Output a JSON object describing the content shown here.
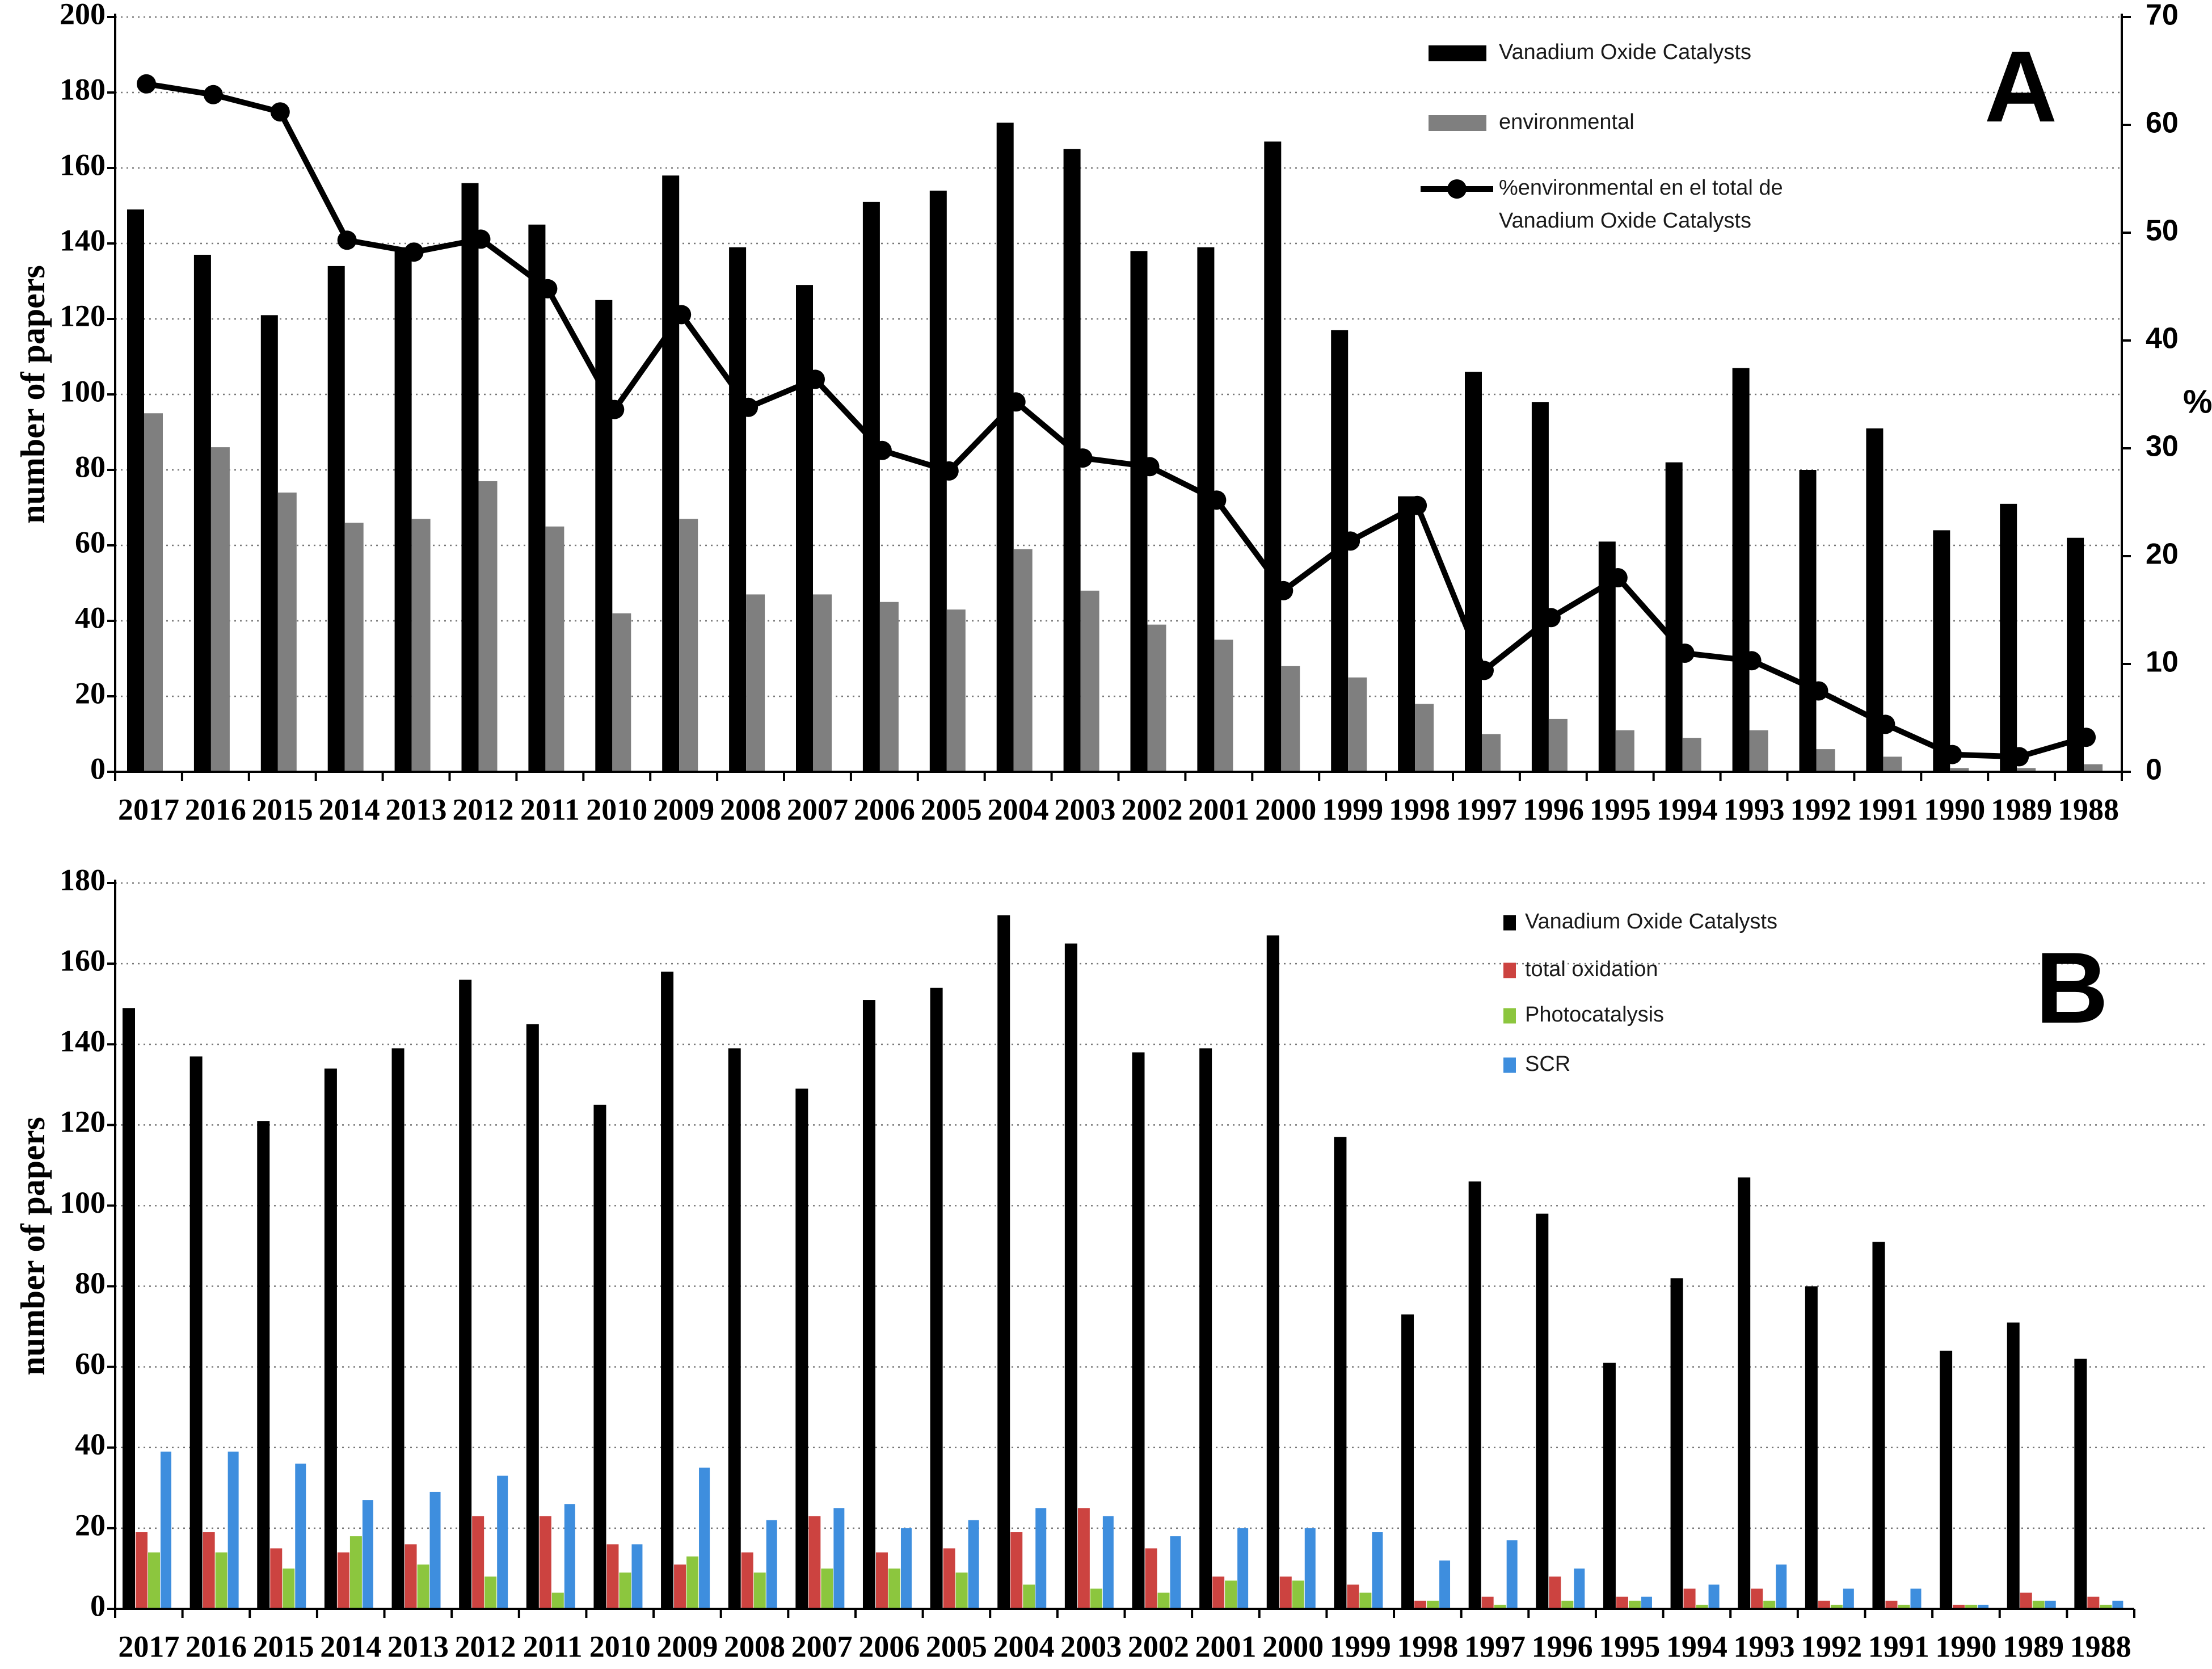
{
  "figure": {
    "background": "#ffffff",
    "panel_letters": [
      "A",
      "B"
    ]
  },
  "chart_data": [
    {
      "id": "A",
      "type": "bar",
      "panel_letter": "A",
      "categories": [
        "2017",
        "2016",
        "2015",
        "2014",
        "2013",
        "2012",
        "2011",
        "2010",
        "2009",
        "2008",
        "2007",
        "2006",
        "2005",
        "2004",
        "2003",
        "2002",
        "2001",
        "2000",
        "1999",
        "1998",
        "1997",
        "1996",
        "1995",
        "1994",
        "1993",
        "1992",
        "1991",
        "1990",
        "1989",
        "1988"
      ],
      "ylabel": "number of papers",
      "ylim": [
        0,
        200
      ],
      "ytick": 20,
      "y_tick_labels": [
        "0",
        "20",
        "40",
        "60",
        "80",
        "100",
        "120",
        "140",
        "160",
        "180",
        "200"
      ],
      "y2label": "%",
      "y2lim": [
        0,
        70
      ],
      "y2tick": 10,
      "y2_tick_labels": [
        "0",
        "10",
        "20",
        "30",
        "40",
        "50",
        "60",
        "70"
      ],
      "grid": "dotted horizontal every 20",
      "legend_position": "top-right inside plot",
      "series": [
        {
          "name": "Vanadium Oxide Catalysts",
          "type": "bar",
          "color": "#000000",
          "values": [
            149,
            137,
            121,
            134,
            139,
            156,
            145,
            125,
            158,
            139,
            129,
            151,
            154,
            172,
            165,
            138,
            139,
            167,
            117,
            73,
            106,
            98,
            61,
            82,
            107,
            80,
            91,
            64,
            71,
            62
          ]
        },
        {
          "name": "environmental",
          "type": "bar",
          "color": "#7F7F7F",
          "values": [
            95,
            86,
            74,
            66,
            67,
            77,
            65,
            42,
            67,
            47,
            47,
            45,
            43,
            59,
            48,
            39,
            35,
            28,
            25,
            18,
            10,
            14,
            11,
            9,
            11,
            6,
            4,
            1,
            1,
            2
          ]
        },
        {
          "name": "%environmental en el total de Vanadium Oxide Catalysts",
          "type": "line",
          "axis": "right",
          "color": "#000000",
          "marker": "filled-circle",
          "values": [
            63.8,
            62.8,
            61.2,
            49.3,
            48.2,
            49.4,
            44.8,
            33.6,
            42.4,
            33.8,
            36.4,
            29.8,
            27.9,
            34.3,
            29.1,
            28.3,
            25.2,
            16.8,
            21.4,
            24.7,
            9.4,
            14.3,
            18.0,
            11.0,
            10.3,
            7.5,
            4.4,
            1.6,
            1.4,
            3.2
          ]
        }
      ],
      "legend": {
        "items": [
          {
            "swatch": "bar",
            "color": "#000000",
            "label_lines": [
              "Vanadium Oxide Catalysts"
            ]
          },
          {
            "swatch": "bar",
            "color": "#7F7F7F",
            "label_lines": [
              "environmental"
            ]
          },
          {
            "swatch": "line",
            "color": "#000000",
            "label_lines": [
              "%environmental en el total de",
              "Vanadium Oxide Catalysts"
            ]
          }
        ]
      }
    },
    {
      "id": "B",
      "type": "bar",
      "panel_letter": "B",
      "categories": [
        "2017",
        "2016",
        "2015",
        "2014",
        "2013",
        "2012",
        "2011",
        "2010",
        "2009",
        "2008",
        "2007",
        "2006",
        "2005",
        "2004",
        "2003",
        "2002",
        "2001",
        "2000",
        "1999",
        "1998",
        "1997",
        "1996",
        "1995",
        "1994",
        "1993",
        "1992",
        "1991",
        "1990",
        "1989",
        "1988"
      ],
      "ylabel": "number of papers",
      "ylim": [
        0,
        180
      ],
      "ytick": 20,
      "y_tick_labels": [
        "0",
        "20",
        "40",
        "60",
        "80",
        "100",
        "120",
        "140",
        "160",
        "180"
      ],
      "grid": "dotted horizontal every 20",
      "legend_position": "top-right inside plot",
      "series": [
        {
          "name": "Vanadium Oxide Catalysts",
          "type": "bar",
          "color": "#000000",
          "values": [
            149,
            137,
            121,
            134,
            139,
            156,
            145,
            125,
            158,
            139,
            129,
            151,
            154,
            172,
            165,
            138,
            139,
            167,
            117,
            73,
            106,
            98,
            61,
            82,
            107,
            80,
            91,
            64,
            71,
            62
          ]
        },
        {
          "name": "total oxidation",
          "type": "bar",
          "color": "#CC4340",
          "values": [
            19,
            19,
            15,
            14,
            16,
            23,
            23,
            16,
            11,
            14,
            23,
            14,
            15,
            19,
            25,
            15,
            8,
            8,
            6,
            2,
            3,
            8,
            3,
            5,
            5,
            2,
            2,
            1,
            4,
            3
          ]
        },
        {
          "name": "Photocatalysis",
          "type": "bar",
          "color": "#8CC63E",
          "values": [
            14,
            14,
            10,
            18,
            11,
            8,
            4,
            9,
            13,
            9,
            10,
            10,
            9,
            6,
            5,
            4,
            7,
            7,
            4,
            2,
            1,
            2,
            2,
            1,
            2,
            1,
            1,
            1,
            2,
            1
          ]
        },
        {
          "name": "SCR",
          "type": "bar",
          "color": "#3E8EDE",
          "values": [
            39,
            39,
            36,
            27,
            29,
            33,
            26,
            16,
            35,
            22,
            25,
            20,
            22,
            25,
            23,
            18,
            20,
            20,
            19,
            12,
            17,
            10,
            3,
            6,
            11,
            5,
            5,
            1,
            2,
            2
          ]
        }
      ],
      "legend": {
        "items": [
          {
            "swatch": "bar",
            "color": "#000000",
            "label_lines": [
              "Vanadium Oxide Catalysts"
            ]
          },
          {
            "swatch": "bar",
            "color": "#CC4340",
            "label_lines": [
              "total oxidation"
            ]
          },
          {
            "swatch": "bar",
            "color": "#8CC63E",
            "label_lines": [
              "Photocatalysis"
            ]
          },
          {
            "swatch": "bar",
            "color": "#3E8EDE",
            "label_lines": [
              "SCR"
            ]
          }
        ]
      }
    }
  ],
  "style_colors": {
    "grid": "#777777",
    "axis": "#000000",
    "bar_black": "#000000",
    "bar_gray": "#7F7F7F",
    "bar_red": "#CC4340",
    "bar_green": "#8CC63E",
    "bar_blue": "#3E8EDE"
  }
}
